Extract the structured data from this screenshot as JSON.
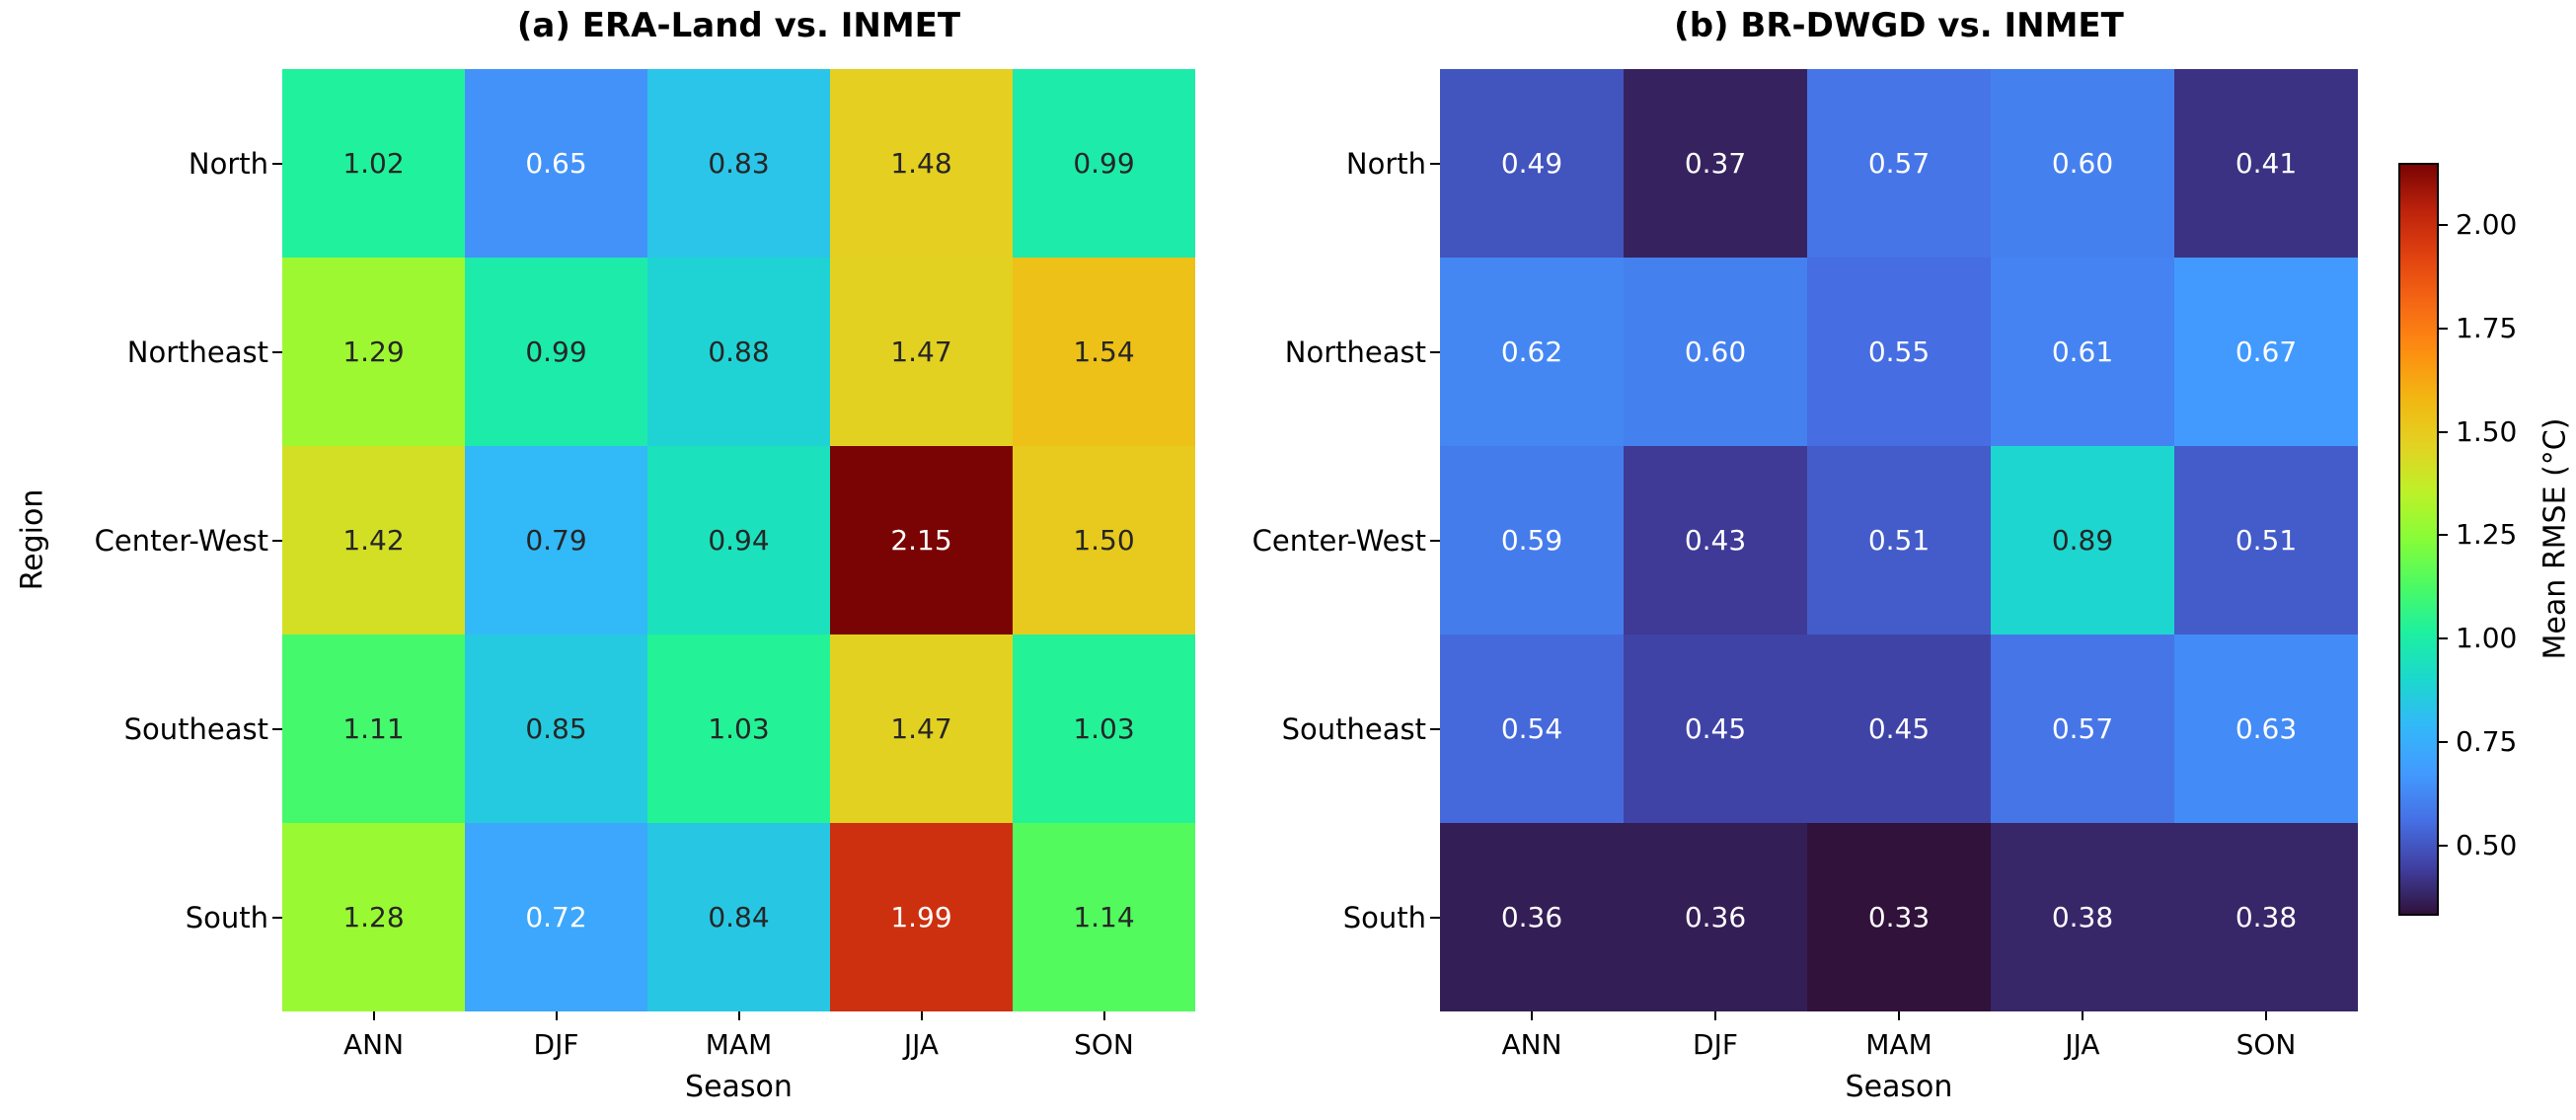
{
  "chart_data": [
    {
      "type": "heatmap",
      "title": "(a) ERA-Land vs. INMET",
      "xlabel": "Season",
      "ylabel": "Region",
      "rows": [
        "North",
        "Northeast",
        "Center-West",
        "Southeast",
        "South"
      ],
      "columns": [
        "ANN",
        "DJF",
        "MAM",
        "JJA",
        "SON"
      ],
      "values": [
        [
          1.02,
          0.65,
          0.83,
          1.48,
          0.99
        ],
        [
          1.29,
          0.99,
          0.88,
          1.47,
          1.54
        ],
        [
          1.42,
          0.79,
          0.94,
          2.15,
          1.5
        ],
        [
          1.11,
          0.85,
          1.03,
          1.47,
          1.03
        ],
        [
          1.28,
          0.72,
          0.84,
          1.99,
          1.14
        ]
      ]
    },
    {
      "type": "heatmap",
      "title": "(b) BR-DWGD vs. INMET",
      "xlabel": "Season",
      "ylabel": "",
      "rows": [
        "North",
        "Northeast",
        "Center-West",
        "Southeast",
        "South"
      ],
      "columns": [
        "ANN",
        "DJF",
        "MAM",
        "JJA",
        "SON"
      ],
      "values": [
        [
          0.49,
          0.37,
          0.57,
          0.6,
          0.41
        ],
        [
          0.62,
          0.6,
          0.55,
          0.61,
          0.67
        ],
        [
          0.59,
          0.43,
          0.51,
          0.89,
          0.51
        ],
        [
          0.54,
          0.45,
          0.45,
          0.57,
          0.63
        ],
        [
          0.36,
          0.36,
          0.33,
          0.38,
          0.38
        ]
      ]
    }
  ],
  "colorbar": {
    "label": "Mean RMSE (°C)",
    "tick_labels": [
      "2.00",
      "1.75",
      "1.50",
      "1.25",
      "1.00",
      "0.75",
      "0.50"
    ],
    "vmin": 0.33,
    "vmax": 2.15,
    "colormap": "turbo",
    "gradient": [
      "#30123b",
      "#4040a2",
      "#4670e5",
      "#429aff",
      "#33b8f9",
      "#1bd8cd",
      "#1df0a0",
      "#4bfa63",
      "#86fd38",
      "#bdf128",
      "#e3d222",
      "#f2b712",
      "#fd8f11",
      "#f66914",
      "#e24410",
      "#be230c",
      "#7a0403"
    ]
  },
  "style": {
    "annot_dark_text": "#262626",
    "annot_light_text": "#ffffff",
    "background": "#ffffff"
  }
}
